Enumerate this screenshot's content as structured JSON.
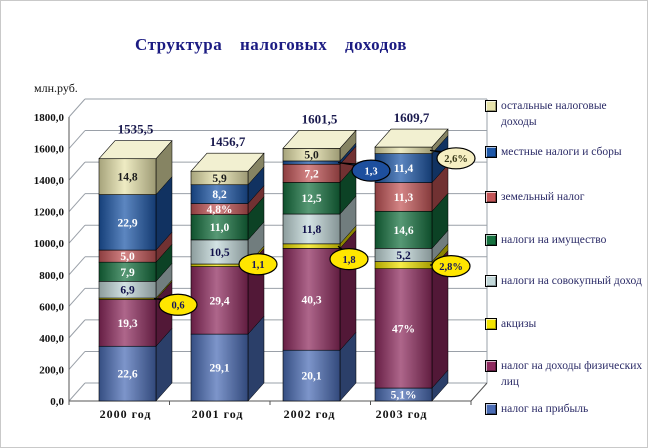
{
  "chart_data": {
    "type": "bar",
    "variant": "3d-stacked-percent",
    "title": "Структура налоговых доходов",
    "ylabel": "млн.руб.",
    "ylim": [
      0,
      1800
    ],
    "grid": true,
    "legend_position": "right",
    "yticks": [
      {
        "label": "1800,0",
        "value": 1800
      },
      {
        "label": "1600,0",
        "value": 1600
      },
      {
        "label": "1400,0",
        "value": 1400
      },
      {
        "label": "1200,0",
        "value": 1200
      },
      {
        "label": "1000,0",
        "value": 1000
      },
      {
        "label": "800,0",
        "value": 800
      },
      {
        "label": "600,0",
        "value": 600
      },
      {
        "label": "400,0",
        "value": 400
      },
      {
        "label": "200,0",
        "value": 200
      },
      {
        "label": "0,0",
        "value": 0
      }
    ],
    "categories": [
      "2000 год",
      "2001 год",
      "2002 год",
      "2003 год"
    ],
    "bar_totals": {
      "labels": [
        "1535,5",
        "1456,7",
        "1601,5",
        "1609,7"
      ],
      "values": [
        1535.5,
        1456.7,
        1601.5,
        1609.7
      ]
    },
    "units_note": "segment values are percent shares of each year's bar",
    "series": [
      {
        "name": "налог на прибыль",
        "color": "#4a6cb5",
        "label_color": "#ffffff",
        "values": [
          22.6,
          29.1,
          20.1,
          5.1
        ],
        "labels": [
          "22,6",
          "29,1",
          "20,1",
          "5,1%"
        ]
      },
      {
        "name": "налог на доходы физических лиц",
        "color": "#8e2a5e",
        "label_color": "#ffffff",
        "values": [
          19.3,
          29.4,
          40.3,
          47
        ],
        "labels": [
          "19,3",
          "29,4",
          "40,3",
          "47%"
        ]
      },
      {
        "name": "акцизы",
        "color": "#f2e400",
        "label_color": "#16165c",
        "values": [
          0.6,
          1.1,
          1.8,
          2.8
        ],
        "labels": [
          null,
          null,
          null,
          null
        ]
      },
      {
        "name": "налоги на совокупный доход",
        "color": "#c2d8d9",
        "label_color": "#10104a",
        "values": [
          6.9,
          10.5,
          11.8,
          5.2
        ],
        "labels": [
          "6,9",
          "10,5",
          "11,8",
          "5,2"
        ]
      },
      {
        "name": "налоги на имущество",
        "color": "#15713f",
        "label_color": "#ffffff",
        "values": [
          7.9,
          11.0,
          12.5,
          14.6
        ],
        "labels": [
          "7,9",
          "11,0",
          "12,5",
          "14,6"
        ]
      },
      {
        "name": "земельный налог",
        "color": "#c35557",
        "label_color": "#ffffff",
        "values": [
          5.0,
          4.8,
          7.2,
          11.3
        ],
        "labels": [
          "5,0",
          "4,8%",
          "7,2",
          "11,3"
        ]
      },
      {
        "name": "местные налоги и сборы",
        "color": "#1d57a8",
        "label_color": "#ffffff",
        "values": [
          22.9,
          8.2,
          1.3,
          11.4
        ],
        "labels": [
          "22,9",
          "8,2",
          null,
          "11,4"
        ]
      },
      {
        "name": "остальные налоговые доходы",
        "color": "#e7e3ab",
        "label_color": "#1c1c1c",
        "values": [
          14.8,
          5.9,
          5.0,
          2.6
        ],
        "labels": [
          "14,8",
          "5,9",
          "5,0",
          null
        ]
      }
    ],
    "callouts": [
      {
        "bar": 0,
        "series": "акцизы",
        "text": "0,6",
        "fill": "#ffe600",
        "text_color": "#16165c"
      },
      {
        "bar": 1,
        "series": "акцизы",
        "text": "1,1",
        "fill": "#ffe600",
        "text_color": "#16165c"
      },
      {
        "bar": 2,
        "series": "акцизы",
        "text": "1,8",
        "fill": "#ffe600",
        "text_color": "#16165c"
      },
      {
        "bar": 2,
        "series": "местные налоги и сборы",
        "text": "1,3",
        "fill": "#1d4f9e",
        "text_color": "#ffffff"
      },
      {
        "bar": 3,
        "series": "акцизы",
        "text": "2,8%",
        "fill": "#ffe600",
        "text_color": "#16165c"
      },
      {
        "bar": 3,
        "series": "остальные налоговые доходы",
        "text": "2,6%",
        "fill": "#f6efc3",
        "text_color": "#3a3a1a"
      }
    ],
    "legend": [
      "остальные налоговые доходы",
      "местные налоги и сборы",
      "земельный налог",
      "налоги на имущество",
      "налоги на совокупный доход",
      "акцизы",
      "налог на доходы физических лиц",
      "налог на прибыль"
    ]
  }
}
